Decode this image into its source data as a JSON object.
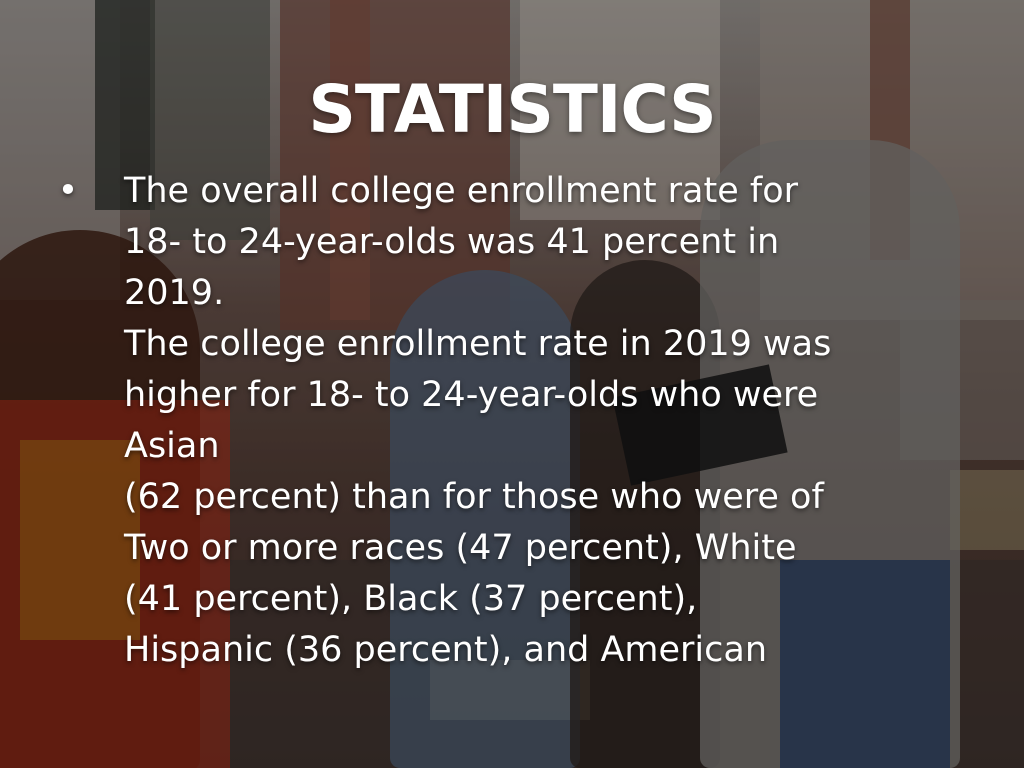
{
  "slide": {
    "title": "STATISTICS",
    "bullet_symbol": "•",
    "lines": [
      "The overall college enrollment rate for",
      "18- to 24-year-olds was 41 percent in",
      "2019.",
      "The college enrollment rate in 2019 was",
      "higher for 18- to 24-year-olds who were",
      "Asian",
      "(62 percent) than for those who were of",
      "Two or more races (47 percent), White",
      "(41 percent), Black (37 percent),",
      "Hispanic (36 percent), and American"
    ]
  },
  "background": {
    "overlay_color": "#000000",
    "text_color": "#ffffff"
  }
}
